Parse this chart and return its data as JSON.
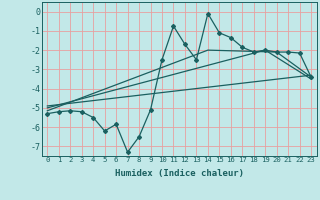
{
  "title": "",
  "xlabel": "Humidex (Indice chaleur)",
  "ylabel": "",
  "background_color": "#c2e8e8",
  "grid_color": "#e8a0a0",
  "line_color": "#1a6060",
  "xlim": [
    -0.5,
    23.5
  ],
  "ylim": [
    -7.5,
    0.5
  ],
  "xticks": [
    0,
    1,
    2,
    3,
    4,
    5,
    6,
    7,
    8,
    9,
    10,
    11,
    12,
    13,
    14,
    15,
    16,
    17,
    18,
    19,
    20,
    21,
    22,
    23
  ],
  "yticks": [
    0,
    -1,
    -2,
    -3,
    -4,
    -5,
    -6,
    -7
  ],
  "line1_x": [
    0,
    1,
    2,
    3,
    4,
    5,
    6,
    7,
    8,
    9,
    10,
    11,
    12,
    13,
    14,
    15,
    16,
    17,
    18,
    19,
    20,
    21,
    22,
    23
  ],
  "line1_y": [
    -5.3,
    -5.2,
    -5.15,
    -5.2,
    -5.5,
    -6.2,
    -5.85,
    -7.3,
    -6.5,
    -5.1,
    -2.5,
    -0.75,
    -1.7,
    -2.5,
    -0.1,
    -1.1,
    -1.35,
    -1.85,
    -2.1,
    -2.0,
    -2.1,
    -2.1,
    -2.15,
    -3.4
  ],
  "line2_x": [
    0,
    14,
    20,
    23
  ],
  "line2_y": [
    -5.15,
    -2.0,
    -2.1,
    -3.4
  ],
  "line3_x": [
    0,
    19,
    23
  ],
  "line3_y": [
    -5.0,
    -2.0,
    -3.5
  ],
  "line4_x": [
    0,
    23
  ],
  "line4_y": [
    -4.9,
    -3.3
  ]
}
